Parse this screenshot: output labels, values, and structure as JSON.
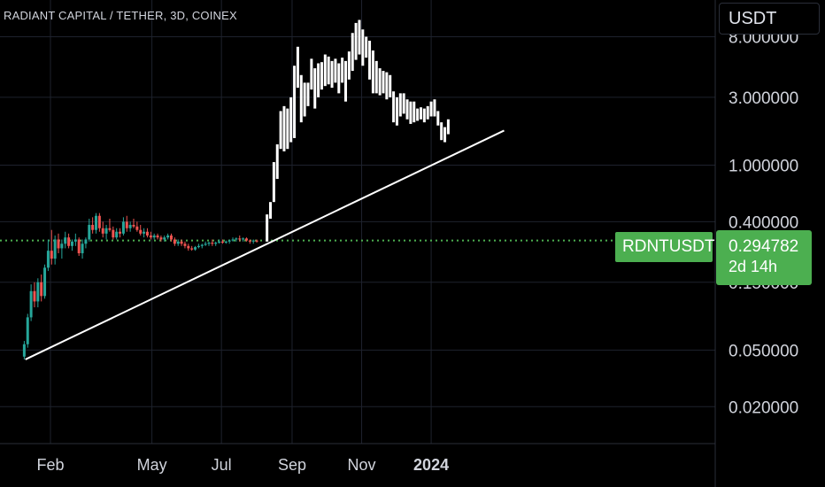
{
  "header": {
    "symbol_title": "RADIANT CAPITAL / TETHER, 3D, COINEX"
  },
  "currency_button": {
    "label": "USDT"
  },
  "last_price": {
    "symbol": "RDNTUSDT",
    "value": "0.294782",
    "countdown": "2d 14h"
  },
  "colors": {
    "up": "#26a69a",
    "down": "#ef5350",
    "last_price": "#4caf50",
    "candle_mono": "#ffffff",
    "trendline": "#ffffff",
    "grid": "#1e222d"
  },
  "chart_data": {
    "type": "candlestick",
    "scale": "log",
    "ylim": [
      0.011,
      14.5
    ],
    "y_ticks": [
      {
        "value": 8.0,
        "label": "8.000000"
      },
      {
        "value": 3.0,
        "label": "3.000000"
      },
      {
        "value": 1.0,
        "label": "1.000000"
      },
      {
        "value": 0.4,
        "label": "0.400000"
      },
      {
        "value": 0.15,
        "label": "0.150000"
      },
      {
        "value": 0.05,
        "label": "0.050000"
      },
      {
        "value": 0.02,
        "label": "0.020000"
      }
    ],
    "x_ticks": [
      {
        "date": "2023-02-01",
        "label": "Feb",
        "bold": false
      },
      {
        "date": "2023-05-01",
        "label": "May",
        "bold": false
      },
      {
        "date": "2023-07-01",
        "label": "Jul",
        "bold": false
      },
      {
        "date": "2023-09-01",
        "label": "Sep",
        "bold": false
      },
      {
        "date": "2023-11-01",
        "label": "Nov",
        "bold": false
      },
      {
        "date": "2024-01-01",
        "label": "2024",
        "bold": true
      }
    ],
    "last_price": 0.294782,
    "trendline": [
      {
        "date": "2023-01-10",
        "price": 0.043
      },
      {
        "date": "2024-03-05",
        "price": 1.75
      }
    ],
    "candles": [
      [
        "2023-01-09",
        0.045,
        0.058,
        0.043,
        0.055
      ],
      [
        "2023-01-12",
        0.055,
        0.09,
        0.052,
        0.085
      ],
      [
        "2023-01-15",
        0.085,
        0.145,
        0.08,
        0.13
      ],
      [
        "2023-01-18",
        0.13,
        0.15,
        0.1,
        0.11
      ],
      [
        "2023-01-21",
        0.11,
        0.16,
        0.1,
        0.15
      ],
      [
        "2023-01-24",
        0.15,
        0.17,
        0.11,
        0.12
      ],
      [
        "2023-01-27",
        0.12,
        0.2,
        0.115,
        0.19
      ],
      [
        "2023-01-30",
        0.19,
        0.3,
        0.18,
        0.25
      ],
      [
        "2023-02-02",
        0.25,
        0.35,
        0.2,
        0.22
      ],
      [
        "2023-02-05",
        0.22,
        0.32,
        0.2,
        0.3
      ],
      [
        "2023-02-08",
        0.3,
        0.33,
        0.24,
        0.26
      ],
      [
        "2023-02-11",
        0.26,
        0.3,
        0.22,
        0.28
      ],
      [
        "2023-02-14",
        0.28,
        0.34,
        0.26,
        0.31
      ],
      [
        "2023-02-17",
        0.31,
        0.33,
        0.26,
        0.27
      ],
      [
        "2023-02-20",
        0.27,
        0.3,
        0.25,
        0.29
      ],
      [
        "2023-02-23",
        0.29,
        0.33,
        0.27,
        0.3
      ],
      [
        "2023-02-26",
        0.3,
        0.31,
        0.23,
        0.24
      ],
      [
        "2023-03-01",
        0.24,
        0.3,
        0.22,
        0.28
      ],
      [
        "2023-03-04",
        0.28,
        0.31,
        0.26,
        0.3
      ],
      [
        "2023-03-07",
        0.3,
        0.42,
        0.29,
        0.38
      ],
      [
        "2023-03-10",
        0.38,
        0.43,
        0.33,
        0.35
      ],
      [
        "2023-03-13",
        0.35,
        0.46,
        0.33,
        0.44
      ],
      [
        "2023-03-16",
        0.44,
        0.46,
        0.34,
        0.36
      ],
      [
        "2023-03-19",
        0.36,
        0.4,
        0.31,
        0.33
      ],
      [
        "2023-03-22",
        0.33,
        0.38,
        0.3,
        0.36
      ],
      [
        "2023-03-25",
        0.36,
        0.42,
        0.34,
        0.35
      ],
      [
        "2023-03-28",
        0.35,
        0.37,
        0.3,
        0.31
      ],
      [
        "2023-03-31",
        0.31,
        0.36,
        0.3,
        0.34
      ],
      [
        "2023-04-03",
        0.34,
        0.36,
        0.31,
        0.33
      ],
      [
        "2023-04-06",
        0.33,
        0.43,
        0.32,
        0.4
      ],
      [
        "2023-04-09",
        0.4,
        0.44,
        0.34,
        0.36
      ],
      [
        "2023-04-12",
        0.36,
        0.4,
        0.34,
        0.38
      ],
      [
        "2023-04-15",
        0.38,
        0.42,
        0.36,
        0.37
      ],
      [
        "2023-04-18",
        0.37,
        0.4,
        0.34,
        0.35
      ],
      [
        "2023-04-21",
        0.35,
        0.38,
        0.32,
        0.33
      ],
      [
        "2023-04-24",
        0.33,
        0.36,
        0.31,
        0.34
      ],
      [
        "2023-04-27",
        0.34,
        0.36,
        0.31,
        0.32
      ],
      [
        "2023-04-30",
        0.32,
        0.34,
        0.3,
        0.31
      ],
      [
        "2023-05-03",
        0.31,
        0.33,
        0.3,
        0.32
      ],
      [
        "2023-05-06",
        0.32,
        0.33,
        0.3,
        0.31
      ],
      [
        "2023-05-09",
        0.31,
        0.32,
        0.29,
        0.3
      ],
      [
        "2023-05-12",
        0.3,
        0.32,
        0.29,
        0.31
      ],
      [
        "2023-05-15",
        0.31,
        0.33,
        0.3,
        0.32
      ],
      [
        "2023-05-18",
        0.32,
        0.33,
        0.29,
        0.3
      ],
      [
        "2023-05-21",
        0.3,
        0.31,
        0.27,
        0.28
      ],
      [
        "2023-05-24",
        0.28,
        0.3,
        0.27,
        0.29
      ],
      [
        "2023-05-27",
        0.29,
        0.3,
        0.27,
        0.28
      ],
      [
        "2023-05-30",
        0.28,
        0.29,
        0.26,
        0.27
      ],
      [
        "2023-06-02",
        0.27,
        0.28,
        0.25,
        0.26
      ],
      [
        "2023-06-05",
        0.26,
        0.27,
        0.25,
        0.255
      ],
      [
        "2023-06-08",
        0.255,
        0.27,
        0.25,
        0.265
      ],
      [
        "2023-06-11",
        0.265,
        0.28,
        0.26,
        0.27
      ],
      [
        "2023-06-14",
        0.27,
        0.28,
        0.26,
        0.275
      ],
      [
        "2023-06-17",
        0.275,
        0.29,
        0.27,
        0.28
      ],
      [
        "2023-06-20",
        0.28,
        0.29,
        0.27,
        0.285
      ],
      [
        "2023-06-23",
        0.285,
        0.3,
        0.27,
        0.28
      ],
      [
        "2023-06-26",
        0.28,
        0.29,
        0.27,
        0.285
      ],
      [
        "2023-06-29",
        0.285,
        0.3,
        0.28,
        0.29
      ],
      [
        "2023-07-02",
        0.29,
        0.3,
        0.28,
        0.285
      ],
      [
        "2023-07-05",
        0.285,
        0.295,
        0.28,
        0.29
      ],
      [
        "2023-07-08",
        0.29,
        0.3,
        0.28,
        0.295
      ],
      [
        "2023-07-11",
        0.295,
        0.31,
        0.29,
        0.3
      ],
      [
        "2023-07-14",
        0.3,
        0.31,
        0.29,
        0.305
      ],
      [
        "2023-07-17",
        0.305,
        0.32,
        0.29,
        0.3
      ],
      [
        "2023-07-20",
        0.3,
        0.31,
        0.29,
        0.305
      ],
      [
        "2023-07-23",
        0.305,
        0.31,
        0.29,
        0.295
      ],
      [
        "2023-07-26",
        0.295,
        0.3,
        0.28,
        0.29
      ],
      [
        "2023-07-29",
        0.29,
        0.3,
        0.28,
        0.295
      ],
      [
        "2023-08-01",
        0.295,
        0.3,
        0.285,
        0.29
      ]
    ],
    "mono_bars": [
      [
        "2023-08-10",
        0.29,
        0.45
      ],
      [
        "2023-08-13",
        0.42,
        0.55
      ],
      [
        "2023-08-16",
        0.55,
        1.05
      ],
      [
        "2023-08-19",
        0.8,
        1.4
      ],
      [
        "2023-08-22",
        1.3,
        2.4
      ],
      [
        "2023-08-25",
        1.25,
        2.6
      ],
      [
        "2023-08-28",
        1.3,
        2.5
      ],
      [
        "2023-08-31",
        1.45,
        3.0
      ],
      [
        "2023-09-03",
        1.55,
        5.0
      ],
      [
        "2023-09-06",
        3.5,
        6.8
      ],
      [
        "2023-09-09",
        2.0,
        4.3
      ],
      [
        "2023-09-12",
        2.2,
        3.8
      ],
      [
        "2023-09-15",
        2.6,
        3.8
      ],
      [
        "2023-09-18",
        3.4,
        5.6
      ],
      [
        "2023-09-21",
        2.5,
        4.8
      ],
      [
        "2023-09-24",
        3.0,
        5.2
      ],
      [
        "2023-09-27",
        3.4,
        5.3
      ],
      [
        "2023-09-30",
        3.6,
        6.0
      ],
      [
        "2023-10-03",
        3.7,
        5.8
      ],
      [
        "2023-10-06",
        3.5,
        5.4
      ],
      [
        "2023-10-09",
        3.8,
        5.6
      ],
      [
        "2023-10-12",
        3.2,
        5.2
      ],
      [
        "2023-10-15",
        3.8,
        5.7
      ],
      [
        "2023-10-18",
        2.8,
        5.4
      ],
      [
        "2023-10-21",
        4.0,
        6.3
      ],
      [
        "2023-10-24",
        4.6,
        8.5
      ],
      [
        "2023-10-27",
        5.5,
        10.0
      ],
      [
        "2023-10-30",
        6.0,
        10.5
      ],
      [
        "2023-11-02",
        5.0,
        9.0
      ],
      [
        "2023-11-05",
        5.7,
        8.0
      ],
      [
        "2023-11-08",
        4.0,
        7.5
      ],
      [
        "2023-11-11",
        3.2,
        6.4
      ],
      [
        "2023-11-14",
        3.2,
        5.4
      ],
      [
        "2023-11-17",
        3.1,
        4.8
      ],
      [
        "2023-11-20",
        3.2,
        4.6
      ],
      [
        "2023-11-23",
        2.9,
        4.5
      ],
      [
        "2023-11-26",
        3.0,
        4.3
      ],
      [
        "2023-11-29",
        2.0,
        3.3
      ],
      [
        "2023-12-02",
        1.9,
        3.0
      ],
      [
        "2023-12-05",
        2.2,
        3.2
      ],
      [
        "2023-12-08",
        2.3,
        3.2
      ],
      [
        "2023-12-11",
        2.1,
        2.9
      ],
      [
        "2023-12-14",
        1.95,
        2.8
      ],
      [
        "2023-12-17",
        2.0,
        2.8
      ],
      [
        "2023-12-20",
        2.05,
        2.5
      ],
      [
        "2023-12-23",
        2.1,
        2.55
      ],
      [
        "2023-12-26",
        2.0,
        2.5
      ],
      [
        "2023-12-29",
        2.1,
        2.6
      ],
      [
        "2024-01-01",
        2.2,
        2.8
      ],
      [
        "2024-01-04",
        2.2,
        2.9
      ],
      [
        "2024-01-07",
        1.9,
        2.4
      ],
      [
        "2024-01-10",
        1.5,
        2.0
      ],
      [
        "2024-01-13",
        1.45,
        1.85
      ],
      [
        "2024-01-16",
        1.65,
        2.1
      ]
    ]
  }
}
